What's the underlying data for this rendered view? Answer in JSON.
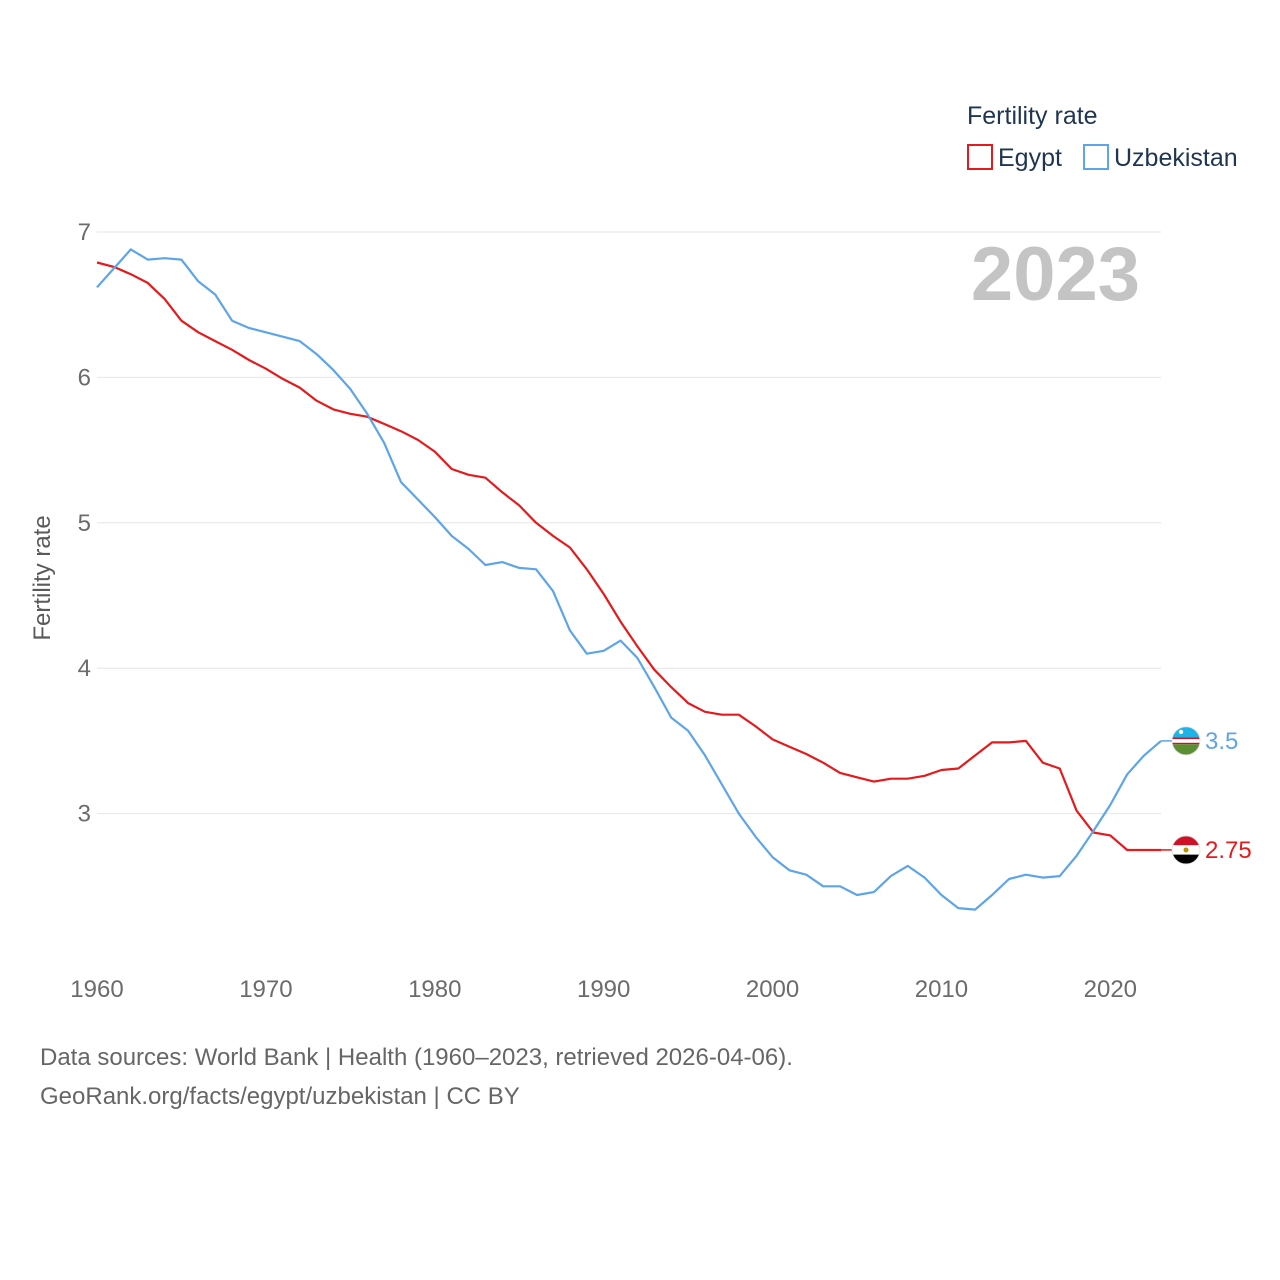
{
  "chart_data": {
    "type": "line",
    "title": "Fertility rate",
    "xlabel": "",
    "ylabel": "Fertility rate",
    "xlim": [
      1960,
      2023
    ],
    "ylim": [
      2.0,
      7.0
    ],
    "x_ticks": [
      1960,
      1970,
      1980,
      1990,
      2000,
      2010,
      2020
    ],
    "y_ticks": [
      3,
      4,
      5,
      6,
      7
    ],
    "current_year": "2023",
    "legend_title": "Fertility rate",
    "legend_position": "top-right",
    "x": [
      1960,
      1961,
      1962,
      1963,
      1964,
      1965,
      1966,
      1967,
      1968,
      1969,
      1970,
      1971,
      1972,
      1973,
      1974,
      1975,
      1976,
      1977,
      1978,
      1979,
      1980,
      1981,
      1982,
      1983,
      1984,
      1985,
      1986,
      1987,
      1988,
      1989,
      1990,
      1991,
      1992,
      1993,
      1994,
      1995,
      1996,
      1997,
      1998,
      1999,
      2000,
      2001,
      2002,
      2003,
      2004,
      2005,
      2006,
      2007,
      2008,
      2009,
      2010,
      2011,
      2012,
      2013,
      2014,
      2015,
      2016,
      2017,
      2018,
      2019,
      2020,
      2021,
      2022,
      2023
    ],
    "series": [
      {
        "name": "Egypt",
        "color": "#e41a1c",
        "end_label": "2.75",
        "flag": "egypt-flag",
        "values": [
          6.79,
          6.76,
          6.71,
          6.65,
          6.54,
          6.39,
          6.31,
          6.25,
          6.19,
          6.12,
          6.06,
          5.99,
          5.93,
          5.84,
          5.78,
          5.75,
          5.73,
          5.68,
          5.63,
          5.57,
          5.49,
          5.37,
          5.33,
          5.31,
          5.21,
          5.12,
          5.0,
          4.91,
          4.83,
          4.68,
          4.51,
          4.32,
          4.15,
          3.99,
          3.87,
          3.76,
          3.7,
          3.68,
          3.68,
          3.6,
          3.51,
          3.46,
          3.41,
          3.35,
          3.28,
          3.25,
          3.22,
          3.24,
          3.24,
          3.26,
          3.3,
          3.31,
          3.4,
          3.49,
          3.49,
          3.5,
          3.35,
          3.31,
          3.02,
          2.87,
          2.85,
          2.75,
          2.75,
          2.75
        ]
      },
      {
        "name": "Uzbekistan",
        "color": "#5da5e8",
        "end_label": "3.5",
        "flag": "uzbekistan-flag",
        "values": [
          6.62,
          6.75,
          6.88,
          6.81,
          6.82,
          6.81,
          6.66,
          6.57,
          6.39,
          6.34,
          6.31,
          6.28,
          6.25,
          6.16,
          6.05,
          5.92,
          5.75,
          5.55,
          5.28,
          5.16,
          5.04,
          4.91,
          4.82,
          4.71,
          4.73,
          4.69,
          4.68,
          4.53,
          4.26,
          4.1,
          4.12,
          4.19,
          4.07,
          3.87,
          3.66,
          3.57,
          3.4,
          3.2,
          3.0,
          2.84,
          2.7,
          2.61,
          2.58,
          2.5,
          2.5,
          2.44,
          2.46,
          2.57,
          2.64,
          2.56,
          2.44,
          2.35,
          2.34,
          2.44,
          2.55,
          2.58,
          2.56,
          2.57,
          2.71,
          2.88,
          3.06,
          3.27,
          3.4,
          3.5
        ]
      }
    ]
  },
  "footer": {
    "line1": "Data sources: World Bank | Health (1960–2023, retrieved 2026-04-06).",
    "line2": "GeoRank.org/facts/egypt/uzbekistan | CC BY"
  }
}
